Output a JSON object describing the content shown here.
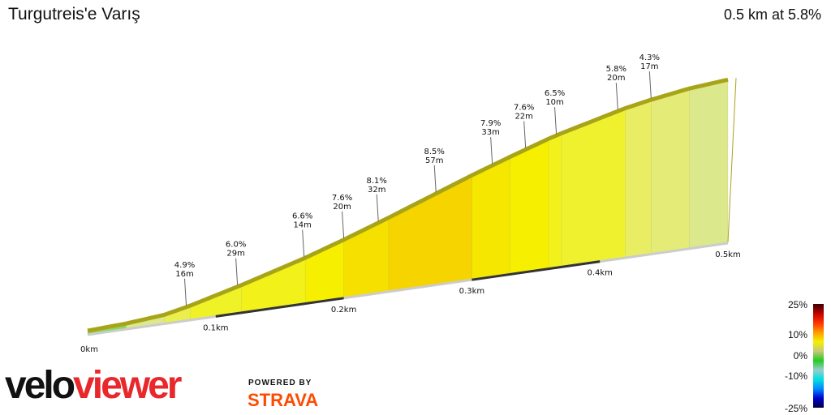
{
  "header": {
    "title": "Turgutreis'e Varış",
    "summary": "0.5 km at 5.8%"
  },
  "chart_data": {
    "type": "area",
    "title": "Turgutreis'e Varış",
    "xlim": [
      0,
      0.5
    ],
    "x_unit": "km",
    "x_ticks": [
      "0km",
      "0.1km",
      "0.2km",
      "0.3km",
      "0.4km",
      "0.5km"
    ],
    "segments": [
      {
        "from": 0,
        "to": 0.03,
        "grade": 1.0
      },
      {
        "from": 0.03,
        "to": 0.06,
        "grade": 2.0
      },
      {
        "from": 0.06,
        "to": 0.08,
        "grade": 4.9
      },
      {
        "from": 0.08,
        "to": 0.12,
        "grade": 6.0
      },
      {
        "from": 0.12,
        "to": 0.17,
        "grade": 6.6
      },
      {
        "from": 0.17,
        "to": 0.2,
        "grade": 7.6
      },
      {
        "from": 0.2,
        "to": 0.235,
        "grade": 8.1
      },
      {
        "from": 0.235,
        "to": 0.3,
        "grade": 8.5
      },
      {
        "from": 0.3,
        "to": 0.33,
        "grade": 7.9
      },
      {
        "from": 0.33,
        "to": 0.36,
        "grade": 7.6
      },
      {
        "from": 0.36,
        "to": 0.37,
        "grade": 6.5
      },
      {
        "from": 0.37,
        "to": 0.42,
        "grade": 5.8
      },
      {
        "from": 0.42,
        "to": 0.44,
        "grade": 4.3
      },
      {
        "from": 0.44,
        "to": 0.47,
        "grade": 3.5
      },
      {
        "from": 0.47,
        "to": 0.5,
        "grade": 2.0
      }
    ],
    "annotations": [
      {
        "at": 0.077,
        "grade": "4.9%",
        "length": "16m"
      },
      {
        "at": 0.117,
        "grade": "6.0%",
        "length": "29m"
      },
      {
        "at": 0.169,
        "grade": "6.6%",
        "length": "14m"
      },
      {
        "at": 0.2,
        "grade": "7.6%",
        "length": "20m"
      },
      {
        "at": 0.227,
        "grade": "8.1%",
        "length": "32m"
      },
      {
        "at": 0.272,
        "grade": "8.5%",
        "length": "57m"
      },
      {
        "at": 0.316,
        "grade": "7.9%",
        "length": "33m"
      },
      {
        "at": 0.342,
        "grade": "7.6%",
        "length": "22m"
      },
      {
        "at": 0.366,
        "grade": "6.5%",
        "length": "10m"
      },
      {
        "at": 0.414,
        "grade": "5.8%",
        "length": "20m"
      },
      {
        "at": 0.44,
        "grade": "4.3%",
        "length": "17m"
      }
    ],
    "legend": {
      "labels": [
        "25%",
        "10%",
        "0%",
        "-10%",
        "-25%"
      ],
      "placement": "bottom-right",
      "colors": [
        "#3a0000",
        "#c00000",
        "#ff3000",
        "#ff9900",
        "#f4f000",
        "#c8c878",
        "#22cc22",
        "#99cccc",
        "#00e0e0",
        "#0088ff",
        "#0000cc",
        "#000044"
      ]
    }
  },
  "branding": {
    "logo_part1": "velo",
    "logo_part2": "viewer",
    "powered_by": "POWERED BY",
    "strava": "STRAVA"
  }
}
